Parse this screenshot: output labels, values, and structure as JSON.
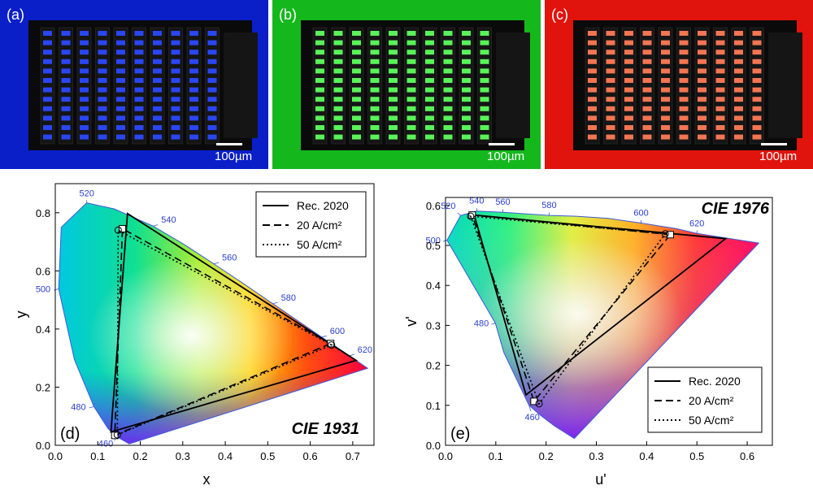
{
  "photos": [
    {
      "panel_label": "(a)",
      "scale_bar": "100µm",
      "glow_color": "#2b49ff",
      "bg_color": "#0a1fc8"
    },
    {
      "panel_label": "(b)",
      "scale_bar": "100µm",
      "glow_color": "#5cff5c",
      "bg_color": "#14b81c"
    },
    {
      "panel_label": "(c)",
      "scale_bar": "100µm",
      "glow_color": "#ff7a55",
      "bg_color": "#e0140c"
    }
  ],
  "chart_data": [
    {
      "type": "scatter",
      "panel_label": "(d)",
      "title": "CIE 1931",
      "xlabel": "x",
      "ylabel": "y",
      "xlim": [
        0,
        0.75
      ],
      "ylim": [
        0,
        0.9
      ],
      "xticks": [
        "0.0",
        "0.1",
        "0.2",
        "0.3",
        "0.4",
        "0.5",
        "0.6",
        "0.7"
      ],
      "yticks": [
        "0.0",
        "0.2",
        "0.4",
        "0.6",
        "0.8"
      ],
      "legend_position": "top-right",
      "locus": [
        [
          0.174,
          0.005
        ],
        [
          0.144,
          0.03
        ],
        [
          0.124,
          0.058
        ],
        [
          0.091,
          0.133
        ],
        [
          0.045,
          0.295
        ],
        [
          0.008,
          0.538
        ],
        [
          0.014,
          0.75
        ],
        [
          0.074,
          0.834
        ],
        [
          0.139,
          0.813
        ],
        [
          0.23,
          0.754
        ],
        [
          0.302,
          0.692
        ],
        [
          0.373,
          0.624
        ],
        [
          0.444,
          0.555
        ],
        [
          0.512,
          0.487
        ],
        [
          0.575,
          0.424
        ],
        [
          0.627,
          0.372
        ],
        [
          0.666,
          0.334
        ],
        [
          0.692,
          0.308
        ],
        [
          0.735,
          0.265
        ]
      ],
      "wavelength_labels": [
        {
          "text": "460",
          "x": 0.144,
          "y": 0.03
        },
        {
          "text": "480",
          "x": 0.091,
          "y": 0.133
        },
        {
          "text": "500",
          "x": 0.008,
          "y": 0.538
        },
        {
          "text": "520",
          "x": 0.074,
          "y": 0.834
        },
        {
          "text": "540",
          "x": 0.23,
          "y": 0.754
        },
        {
          "text": "560",
          "x": 0.373,
          "y": 0.624
        },
        {
          "text": "580",
          "x": 0.512,
          "y": 0.487
        },
        {
          "text": "600",
          "x": 0.627,
          "y": 0.372
        },
        {
          "text": "620",
          "x": 0.692,
          "y": 0.308
        }
      ],
      "series": [
        {
          "name": "Rec. 2020",
          "style": "solid",
          "points": [
            [
              0.708,
              0.292
            ],
            [
              0.17,
              0.797
            ],
            [
              0.131,
              0.046
            ]
          ]
        },
        {
          "name": "20 A/cm²",
          "style": "dashed",
          "points": [
            [
              0.648,
              0.35
            ],
            [
              0.158,
              0.745
            ],
            [
              0.14,
              0.034
            ]
          ]
        },
        {
          "name": "50 A/cm²",
          "style": "dotted",
          "points": [
            [
              0.65,
              0.345
            ],
            [
              0.148,
              0.74
            ],
            [
              0.146,
              0.036
            ]
          ]
        }
      ]
    },
    {
      "type": "scatter",
      "panel_label": "(e)",
      "title": "CIE 1976",
      "xlabel": "u'",
      "ylabel": "v'",
      "xlim": [
        0,
        0.65
      ],
      "ylim": [
        0,
        0.62
      ],
      "xticks": [
        "0.0",
        "0.1",
        "0.2",
        "0.3",
        "0.4",
        "0.5",
        "0.6"
      ],
      "yticks": [
        "0.0",
        "0.1",
        "0.2",
        "0.3",
        "0.4",
        "0.5",
        "0.6"
      ],
      "legend_position": "bottom-right",
      "locus": [
        [
          0.256,
          0.017
        ],
        [
          0.216,
          0.049
        ],
        [
          0.187,
          0.077
        ],
        [
          0.166,
          0.1
        ],
        [
          0.116,
          0.232
        ],
        [
          0.099,
          0.306
        ],
        [
          0.003,
          0.513
        ],
        [
          0.03,
          0.575
        ],
        [
          0.062,
          0.586
        ],
        [
          0.114,
          0.583
        ],
        [
          0.206,
          0.575
        ],
        [
          0.26,
          0.573
        ],
        [
          0.322,
          0.568
        ],
        [
          0.389,
          0.556
        ],
        [
          0.459,
          0.542
        ],
        [
          0.5,
          0.53
        ],
        [
          0.623,
          0.506
        ]
      ],
      "wavelength_labels": [
        {
          "text": "460",
          "x": 0.166,
          "y": 0.1
        },
        {
          "text": "480",
          "x": 0.099,
          "y": 0.306
        },
        {
          "text": "500",
          "x": 0.003,
          "y": 0.513
        },
        {
          "text": "520",
          "x": 0.03,
          "y": 0.575
        },
        {
          "text": "540",
          "x": 0.062,
          "y": 0.586
        },
        {
          "text": "560",
          "x": 0.114,
          "y": 0.583
        },
        {
          "text": "580",
          "x": 0.206,
          "y": 0.575
        },
        {
          "text": "600",
          "x": 0.389,
          "y": 0.556
        },
        {
          "text": "620",
          "x": 0.5,
          "y": 0.53
        }
      ],
      "series": [
        {
          "name": "Rec. 2020",
          "style": "solid",
          "points": [
            [
              0.557,
              0.517
            ],
            [
              0.057,
              0.576
            ],
            [
              0.16,
              0.126
            ]
          ]
        },
        {
          "name": "20 A/cm²",
          "style": "dashed",
          "points": [
            [
              0.447,
              0.527
            ],
            [
              0.053,
              0.576
            ],
            [
              0.176,
              0.11
            ]
          ]
        },
        {
          "name": "50 A/cm²",
          "style": "dotted",
          "points": [
            [
              0.437,
              0.529
            ],
            [
              0.05,
              0.573
            ],
            [
              0.186,
              0.104
            ]
          ]
        }
      ]
    }
  ]
}
